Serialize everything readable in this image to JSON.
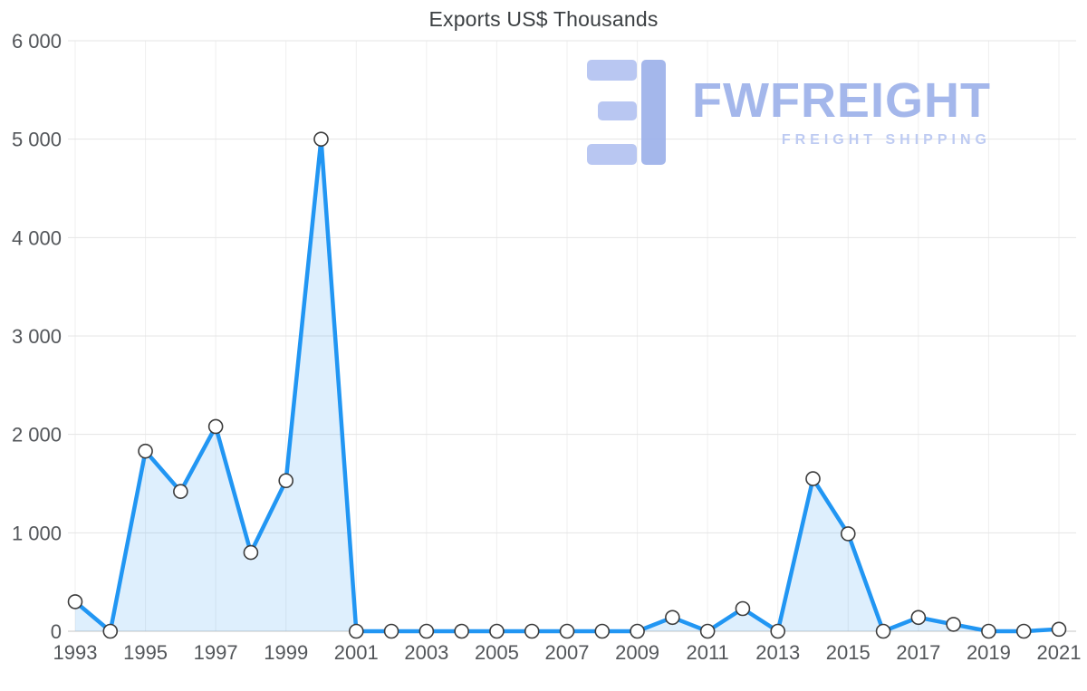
{
  "logo": {
    "name": "FWFREIGHT",
    "tagline": "FREIGHT SHIPPING"
  },
  "chart_data": {
    "type": "area",
    "title": "Exports US$ Thousands",
    "xlabel": "",
    "ylabel": "",
    "x": [
      1993,
      1994,
      1995,
      1996,
      1997,
      1998,
      1999,
      2000,
      2001,
      2002,
      2003,
      2004,
      2005,
      2006,
      2007,
      2008,
      2009,
      2010,
      2011,
      2012,
      2013,
      2014,
      2015,
      2016,
      2017,
      2018,
      2019,
      2020,
      2021
    ],
    "values": [
      300,
      0,
      1830,
      1420,
      2080,
      800,
      1530,
      5000,
      0,
      0,
      0,
      0,
      0,
      0,
      0,
      0,
      0,
      140,
      0,
      230,
      0,
      1550,
      990,
      0,
      140,
      70,
      0,
      0,
      20
    ],
    "xlim": [
      1993,
      2021
    ],
    "ylim": [
      0,
      6000
    ],
    "x_ticks": [
      1993,
      1995,
      1997,
      1999,
      2001,
      2003,
      2005,
      2007,
      2009,
      2011,
      2013,
      2015,
      2017,
      2019,
      2021
    ],
    "x_tick_labels": [
      "1993",
      "1995",
      "1997",
      "1999",
      "2001",
      "2003",
      "2005",
      "2007",
      "2009",
      "2011",
      "2013",
      "2015",
      "2017",
      "2019",
      "2021"
    ],
    "y_ticks": [
      0,
      1000,
      2000,
      3000,
      4000,
      5000,
      6000
    ],
    "y_tick_labels": [
      "0",
      "1 000",
      "2 000",
      "3 000",
      "4 000",
      "5 000",
      "6 000"
    ],
    "grid": true,
    "legend": "none",
    "line_color": "#2196f3",
    "fill_color": "rgba(33, 150, 243, 0.15)",
    "marker_fill": "#ffffff",
    "marker_stroke": "#3c3c3c",
    "gridline_color": "#e5e5e5",
    "axis_line_color": "#c4c4c4"
  }
}
